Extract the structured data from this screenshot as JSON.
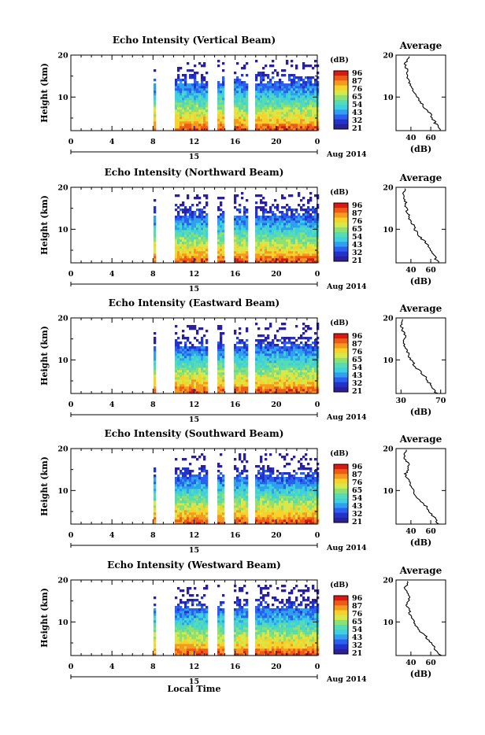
{
  "charts": [
    {
      "title": "Echo Intensity (Vertical Beam)",
      "avg_ticks": [
        "40",
        "60"
      ]
    },
    {
      "title": "Echo Intensity (Northward Beam)",
      "avg_ticks": [
        "40",
        "60"
      ]
    },
    {
      "title": "Echo Intensity (Eastward Beam)",
      "avg_ticks": [
        "30",
        "70"
      ]
    },
    {
      "title": "Echo Intensity (Southward Beam)",
      "avg_ticks": [
        "40",
        "60"
      ]
    },
    {
      "title": "Echo Intensity (Westward Beam)",
      "avg_ticks": [
        "40",
        "60"
      ]
    }
  ],
  "labels": {
    "ylabel": "Height (km)",
    "y_ticks": [
      "20",
      "10"
    ],
    "x_ticks": [
      "0",
      "4",
      "8",
      "12",
      "16",
      "20",
      "0"
    ],
    "date_day": "15",
    "date_month": "Aug 2014",
    "avg_title": "Average",
    "avg_unit": "(dB)",
    "cbar_unit": "(dB)",
    "cbar_ticks": [
      "96",
      "87",
      "76",
      "65",
      "54",
      "43",
      "32",
      "21"
    ],
    "xlabel": "Local Time"
  },
  "colors": {
    "scale": [
      "#2a1f9c",
      "#2233cc",
      "#2a5ff0",
      "#2fa0ee",
      "#3fd0e0",
      "#56dcb0",
      "#8fe070",
      "#d6e84a",
      "#f7d22a",
      "#f59a1e",
      "#ee5a18",
      "#d81b12"
    ]
  },
  "chart_data": [
    {
      "type": "heatmap",
      "title": "Echo Intensity (Vertical Beam)",
      "xlabel": "Local Time",
      "ylabel": "Height (km)",
      "xlim": [
        0,
        24
      ],
      "ylim": [
        2,
        20
      ],
      "zlim": [
        21,
        96
      ],
      "zunit": "dB",
      "date": "15 Aug 2014",
      "data_gaps_hours": [
        [
          13.2,
          14.1
        ],
        [
          14.9,
          15.7
        ],
        [
          17.2,
          17.8
        ]
      ],
      "profile": {
        "xlabel": "(dB)",
        "title": "Average",
        "height_km": [
          2,
          4,
          6,
          8,
          10,
          12,
          14,
          16,
          18,
          20
        ],
        "intensity_db": [
          70,
          64,
          60,
          52,
          46,
          42,
          38,
          36,
          34,
          38
        ]
      }
    },
    {
      "type": "heatmap",
      "title": "Echo Intensity (Northward Beam)",
      "xlabel": "Local Time",
      "ylabel": "Height (km)",
      "xlim": [
        0,
        24
      ],
      "ylim": [
        2,
        20
      ],
      "zlim": [
        21,
        96
      ],
      "zunit": "dB",
      "date": "15 Aug 2014",
      "data_gaps_hours": [
        [
          13.2,
          14.1
        ],
        [
          14.9,
          15.7
        ],
        [
          17.2,
          17.8
        ]
      ],
      "profile": {
        "xlabel": "(dB)",
        "title": "Average",
        "height_km": [
          2,
          4,
          6,
          8,
          10,
          12,
          14,
          16,
          18,
          20
        ],
        "intensity_db": [
          68,
          62,
          58,
          50,
          44,
          40,
          36,
          35,
          32,
          34
        ]
      }
    },
    {
      "type": "heatmap",
      "title": "Echo Intensity (Eastward Beam)",
      "xlabel": "Local Time",
      "ylabel": "Height (km)",
      "xlim": [
        0,
        24
      ],
      "ylim": [
        2,
        20
      ],
      "zlim": [
        21,
        96
      ],
      "zunit": "dB",
      "date": "15 Aug 2014",
      "data_gaps_hours": [
        [
          13.2,
          14.1
        ],
        [
          14.9,
          15.7
        ],
        [
          17.2,
          17.8
        ]
      ],
      "profile": {
        "xlabel": "(dB)",
        "title": "Average",
        "height_km": [
          2,
          4,
          6,
          8,
          10,
          12,
          14,
          16,
          18,
          20
        ],
        "intensity_db": [
          66,
          60,
          54,
          46,
          40,
          36,
          33,
          34,
          30,
          32
        ]
      }
    },
    {
      "type": "heatmap",
      "title": "Echo Intensity (Southward Beam)",
      "xlabel": "Local Time",
      "ylabel": "Height (km)",
      "xlim": [
        0,
        24
      ],
      "ylim": [
        2,
        20
      ],
      "zlim": [
        21,
        96
      ],
      "zunit": "dB",
      "date": "15 Aug 2014",
      "data_gaps_hours": [
        [
          13.2,
          14.1
        ],
        [
          14.9,
          15.7
        ],
        [
          17.2,
          17.8
        ]
      ],
      "profile": {
        "xlabel": "(dB)",
        "title": "Average",
        "height_km": [
          2,
          4,
          6,
          8,
          10,
          12,
          14,
          16,
          18,
          20
        ],
        "intensity_db": [
          68,
          62,
          56,
          48,
          42,
          38,
          35,
          38,
          33,
          36
        ]
      }
    },
    {
      "type": "heatmap",
      "title": "Echo Intensity (Westward Beam)",
      "xlabel": "Local Time",
      "ylabel": "Height (km)",
      "xlim": [
        0,
        24
      ],
      "ylim": [
        2,
        20
      ],
      "zlim": [
        21,
        96
      ],
      "zunit": "dB",
      "date": "15 Aug 2014",
      "data_gaps_hours": [
        [
          13.2,
          14.1
        ],
        [
          14.9,
          15.7
        ],
        [
          17.2,
          17.8
        ]
      ],
      "profile": {
        "xlabel": "(dB)",
        "title": "Average",
        "height_km": [
          2,
          4,
          6,
          8,
          10,
          12,
          14,
          16,
          18,
          20
        ],
        "intensity_db": [
          70,
          63,
          57,
          49,
          43,
          39,
          36,
          38,
          34,
          37
        ]
      }
    }
  ]
}
